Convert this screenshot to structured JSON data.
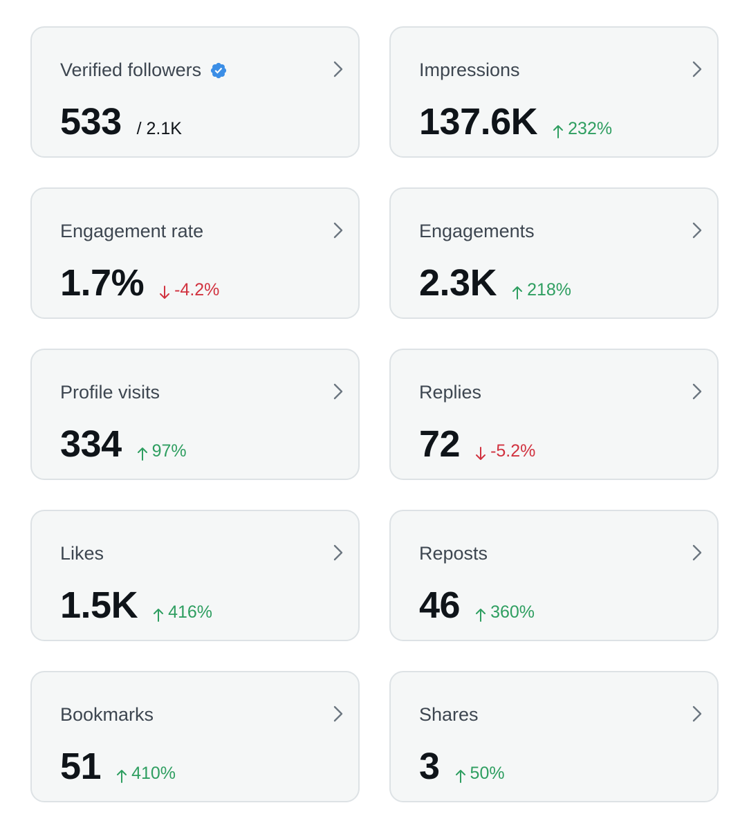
{
  "colors": {
    "card_bg": "#f5f7f7",
    "card_border": "#dde2e5",
    "title": "#3d4650",
    "value": "#0f1419",
    "up": "#2e9e60",
    "down": "#d1323f",
    "verified": "#3b8ee6",
    "chevron": "#6b7680"
  },
  "cards": {
    "verified_followers": {
      "title": "Verified followers",
      "value": "533",
      "sub": "/ 2.1K",
      "title_icon": "verified-badge-icon"
    },
    "impressions": {
      "title": "Impressions",
      "value": "137.6K",
      "delta": "232%",
      "direction": "up"
    },
    "engagement_rate": {
      "title": "Engagement rate",
      "value": "1.7%",
      "delta": "-4.2%",
      "direction": "down"
    },
    "engagements": {
      "title": "Engagements",
      "value": "2.3K",
      "delta": "218%",
      "direction": "up"
    },
    "profile_visits": {
      "title": "Profile visits",
      "value": "334",
      "delta": "97%",
      "direction": "up"
    },
    "replies": {
      "title": "Replies",
      "value": "72",
      "delta": "-5.2%",
      "direction": "down"
    },
    "likes": {
      "title": "Likes",
      "value": "1.5K",
      "delta": "416%",
      "direction": "up"
    },
    "reposts": {
      "title": "Reposts",
      "value": "46",
      "delta": "360%",
      "direction": "up"
    },
    "bookmarks": {
      "title": "Bookmarks",
      "value": "51",
      "delta": "410%",
      "direction": "up"
    },
    "shares": {
      "title": "Shares",
      "value": "3",
      "delta": "50%",
      "direction": "up"
    }
  },
  "icons": {
    "chevron": "chevron-right-icon",
    "arrow_up": "arrow-up-icon",
    "arrow_down": "arrow-down-icon"
  }
}
